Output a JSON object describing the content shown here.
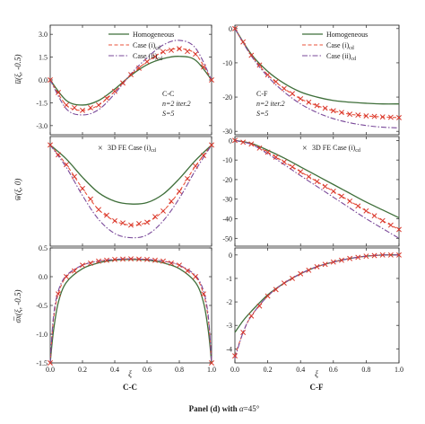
{
  "figure": {
    "caption_prefix": "Panel (d) with ",
    "caption_alpha": "α",
    "caption_rest": "=45°",
    "xlabel": "ξ",
    "col_labels": [
      "C-C",
      "C-F"
    ],
    "row_ylabels": [
      "u̅(ξ, -0.5)",
      "w̅(ξ, 0)",
      "σ̅x(ξ, -0.5)"
    ]
  },
  "colors": {
    "homogeneous": "#3f6f3a",
    "case_i": "#e8513a",
    "case_ii": "#7a4a9a",
    "fe": "#d9362a"
  },
  "legend": {
    "homogeneous": "Homogeneous",
    "case_i": "Case (i)",
    "case_ii": "Case (ii)",
    "sub": "cd",
    "fe": "3D FE Case (i)"
  },
  "annotations": {
    "cc_title": "C-C",
    "cc_line2": "n=2 iter.2",
    "cc_line3": "S=5",
    "cf_title": "C-F",
    "cf_line2": "n=2 iter.2",
    "cf_line3": "S=5"
  },
  "chart_data": [
    {
      "id": "u_cc",
      "type": "line",
      "row": 0,
      "col": 0,
      "ylabel": "u̅(ξ, -0.5)",
      "xlabel": "",
      "xlim": [
        0,
        1
      ],
      "ylim": [
        -3.6,
        3.6
      ],
      "xticks": [
        0.0,
        0.2,
        0.4,
        0.6,
        0.8,
        1.0
      ],
      "yticks": [
        -3.0,
        -1.5,
        0.0,
        1.5,
        3.0
      ],
      "x": [
        0,
        0.1,
        0.2,
        0.3,
        0.4,
        0.5,
        0.6,
        0.7,
        0.8,
        0.9,
        1.0
      ],
      "series": [
        {
          "name": "Homogeneous",
          "style": "solid",
          "values": [
            0,
            -1.35,
            -1.65,
            -1.35,
            -0.6,
            0.3,
            1.0,
            1.4,
            1.55,
            1.3,
            0
          ]
        },
        {
          "name": "Case (i)cd",
          "style": "dashed",
          "values": [
            0,
            -1.65,
            -2.0,
            -1.65,
            -0.75,
            0.35,
            1.2,
            1.85,
            2.05,
            1.7,
            0
          ]
        },
        {
          "name": "Case (ii)cd",
          "style": "dashdot",
          "values": [
            0,
            -1.9,
            -2.3,
            -1.95,
            -0.9,
            0.4,
            1.45,
            2.3,
            2.6,
            2.1,
            0
          ]
        },
        {
          "name": "3D FE Case (i)cd",
          "style": "marker",
          "values": [
            0,
            -1.65,
            -2.0,
            -1.65,
            -0.75,
            0.35,
            1.2,
            1.85,
            2.05,
            1.7,
            0
          ]
        }
      ]
    },
    {
      "id": "u_cf",
      "type": "line",
      "row": 0,
      "col": 1,
      "ylabel": "",
      "xlabel": "",
      "xlim": [
        0,
        1
      ],
      "ylim": [
        -31,
        1
      ],
      "xticks": [
        0.0,
        0.2,
        0.4,
        0.6,
        0.8,
        1.0
      ],
      "yticks": [
        -30,
        -20,
        -10,
        0
      ],
      "x": [
        0,
        0.1,
        0.2,
        0.3,
        0.4,
        0.5,
        0.6,
        0.7,
        0.8,
        0.9,
        1.0
      ],
      "series": [
        {
          "name": "Homogeneous",
          "style": "solid",
          "values": [
            0,
            -7.5,
            -12.5,
            -16,
            -18.5,
            -20,
            -21,
            -21.5,
            -21.8,
            -22,
            -22
          ]
        },
        {
          "name": "Case (i)cd",
          "style": "dashed",
          "values": [
            0,
            -7.8,
            -13.5,
            -17.5,
            -20.5,
            -22.5,
            -24,
            -25,
            -25.5,
            -25.8,
            -26
          ]
        },
        {
          "name": "Case (ii)cd",
          "style": "dashdot",
          "values": [
            0,
            -8,
            -14,
            -18.5,
            -22,
            -24.5,
            -26.3,
            -27.5,
            -28.3,
            -28.8,
            -29
          ]
        },
        {
          "name": "3D FE Case (i)cd",
          "style": "marker",
          "values": [
            0,
            -7.8,
            -13.5,
            -17.5,
            -20.5,
            -22.5,
            -24,
            -25,
            -25.5,
            -25.8,
            -26
          ]
        }
      ]
    },
    {
      "id": "w_cc",
      "type": "line",
      "row": 1,
      "col": 0,
      "ylabel": "w̅(ξ, 0)",
      "xlabel": "",
      "xlim": [
        0,
        1
      ],
      "ylim": [
        -3.6,
        0.3
      ],
      "xticks": [
        0.0,
        0.2,
        0.4,
        0.6,
        0.8,
        1.0
      ],
      "yticks": [],
      "x": [
        0,
        0.1,
        0.2,
        0.3,
        0.4,
        0.5,
        0.6,
        0.7,
        0.8,
        0.9,
        1.0
      ],
      "series": [
        {
          "name": "Homogeneous",
          "style": "solid",
          "values": [
            0,
            -0.5,
            -1.15,
            -1.7,
            -2.0,
            -2.1,
            -2.05,
            -1.75,
            -1.2,
            -0.55,
            0
          ]
        },
        {
          "name": "Case (i)cd",
          "style": "dashed",
          "values": [
            0,
            -0.7,
            -1.55,
            -2.3,
            -2.7,
            -2.85,
            -2.75,
            -2.35,
            -1.65,
            -0.75,
            0
          ]
        },
        {
          "name": "Case (ii)cd",
          "style": "dashdot",
          "values": [
            0,
            -0.8,
            -1.8,
            -2.65,
            -3.15,
            -3.3,
            -3.2,
            -2.7,
            -1.9,
            -0.9,
            0
          ]
        },
        {
          "name": "3D FE Case (i)cd",
          "style": "marker",
          "values": [
            0,
            -0.7,
            -1.55,
            -2.3,
            -2.7,
            -2.85,
            -2.75,
            -2.35,
            -1.65,
            -0.75,
            0
          ]
        }
      ]
    },
    {
      "id": "w_cf",
      "type": "line",
      "row": 1,
      "col": 1,
      "ylabel": "",
      "xlabel": "",
      "xlim": [
        0,
        1
      ],
      "ylim": [
        -54,
        2
      ],
      "xticks": [
        0.0,
        0.2,
        0.4,
        0.6,
        0.8,
        1.0
      ],
      "yticks": [
        -50,
        -40,
        -30,
        -20,
        -10,
        0
      ],
      "x": [
        0,
        0.1,
        0.2,
        0.3,
        0.4,
        0.5,
        0.6,
        0.7,
        0.8,
        0.9,
        1.0
      ],
      "series": [
        {
          "name": "Homogeneous",
          "style": "solid",
          "values": [
            0,
            -1.5,
            -5,
            -9,
            -13.5,
            -18,
            -22.5,
            -27,
            -31.5,
            -35.5,
            -39.5
          ]
        },
        {
          "name": "Case (i)cd",
          "style": "dashed",
          "values": [
            0,
            -1.8,
            -6,
            -11,
            -16,
            -21,
            -26,
            -31,
            -36,
            -41,
            -45.5
          ]
        },
        {
          "name": "Case (ii)cd",
          "style": "dashdot",
          "values": [
            0,
            -2,
            -6.8,
            -12.3,
            -18,
            -23.5,
            -29,
            -34.5,
            -40,
            -45,
            -50
          ]
        },
        {
          "name": "3D FE Case (i)cd",
          "style": "marker",
          "values": [
            0,
            -1.8,
            -6,
            -11,
            -16,
            -21,
            -26,
            -31,
            -36,
            -41,
            -45.5
          ]
        }
      ]
    },
    {
      "id": "s_cc",
      "type": "line",
      "row": 2,
      "col": 0,
      "ylabel": "σ̅x(ξ, -0.5)",
      "xlabel": "ξ",
      "xlim": [
        0,
        1
      ],
      "ylim": [
        -1.5,
        0.5
      ],
      "xticks": [
        0.0,
        0.2,
        0.4,
        0.6,
        0.8,
        1.0
      ],
      "yticks": [
        -1.5,
        -1.0,
        -0.5,
        0.0,
        0.5
      ],
      "x": [
        0,
        0.02,
        0.05,
        0.1,
        0.2,
        0.3,
        0.4,
        0.5,
        0.6,
        0.7,
        0.8,
        0.9,
        0.95,
        0.98,
        1.0
      ],
      "series": [
        {
          "name": "Homogeneous",
          "style": "solid",
          "values": [
            -1.5,
            -0.95,
            -0.45,
            -0.1,
            0.14,
            0.24,
            0.29,
            0.3,
            0.29,
            0.24,
            0.14,
            -0.1,
            -0.45,
            -0.95,
            -1.5
          ]
        },
        {
          "name": "Case (i)cd",
          "style": "dashed",
          "values": [
            -1.5,
            -0.75,
            -0.3,
            0.0,
            0.2,
            0.27,
            0.3,
            0.31,
            0.3,
            0.27,
            0.2,
            0.0,
            -0.3,
            -0.75,
            -1.5
          ]
        },
        {
          "name": "Case (ii)cd",
          "style": "dashdot",
          "values": [
            -1.5,
            -0.7,
            -0.25,
            0.02,
            0.2,
            0.27,
            0.3,
            0.31,
            0.3,
            0.27,
            0.2,
            0.02,
            -0.25,
            -0.7,
            -1.5
          ]
        },
        {
          "name": "3D FE Case (i)cd",
          "style": "marker",
          "values": [
            -1.5,
            -0.75,
            -0.3,
            0.0,
            0.2,
            0.27,
            0.3,
            0.31,
            0.3,
            0.27,
            0.2,
            0.0,
            -0.3,
            -0.75,
            -1.5
          ]
        }
      ]
    },
    {
      "id": "s_cf",
      "type": "line",
      "row": 2,
      "col": 1,
      "ylabel": "",
      "xlabel": "ξ",
      "xlim": [
        0,
        1
      ],
      "ylim": [
        -4.6,
        0.3
      ],
      "xticks": [
        0.0,
        0.2,
        0.4,
        0.6,
        0.8,
        1.0
      ],
      "yticks": [
        -4,
        -3,
        -2,
        -1,
        0
      ],
      "x": [
        0,
        0.05,
        0.1,
        0.2,
        0.3,
        0.4,
        0.5,
        0.6,
        0.7,
        0.8,
        0.9,
        1.0
      ],
      "series": [
        {
          "name": "Homogeneous",
          "style": "solid",
          "values": [
            -3.3,
            -2.8,
            -2.4,
            -1.7,
            -1.2,
            -0.8,
            -0.5,
            -0.3,
            -0.15,
            -0.05,
            0,
            0
          ]
        },
        {
          "name": "Case (i)cd",
          "style": "dashed",
          "values": [
            -4.3,
            -3.3,
            -2.6,
            -1.75,
            -1.2,
            -0.8,
            -0.5,
            -0.3,
            -0.15,
            -0.05,
            0,
            0
          ]
        },
        {
          "name": "Case (ii)cd",
          "style": "dashdot",
          "values": [
            -4.4,
            -3.3,
            -2.6,
            -1.75,
            -1.2,
            -0.8,
            -0.5,
            -0.3,
            -0.15,
            -0.05,
            0,
            0
          ]
        },
        {
          "name": "3D FE Case (i)cd",
          "style": "marker",
          "values": [
            -4.3,
            -3.3,
            -2.6,
            -1.75,
            -1.2,
            -0.8,
            -0.5,
            -0.3,
            -0.15,
            -0.05,
            0,
            0
          ]
        }
      ]
    }
  ]
}
